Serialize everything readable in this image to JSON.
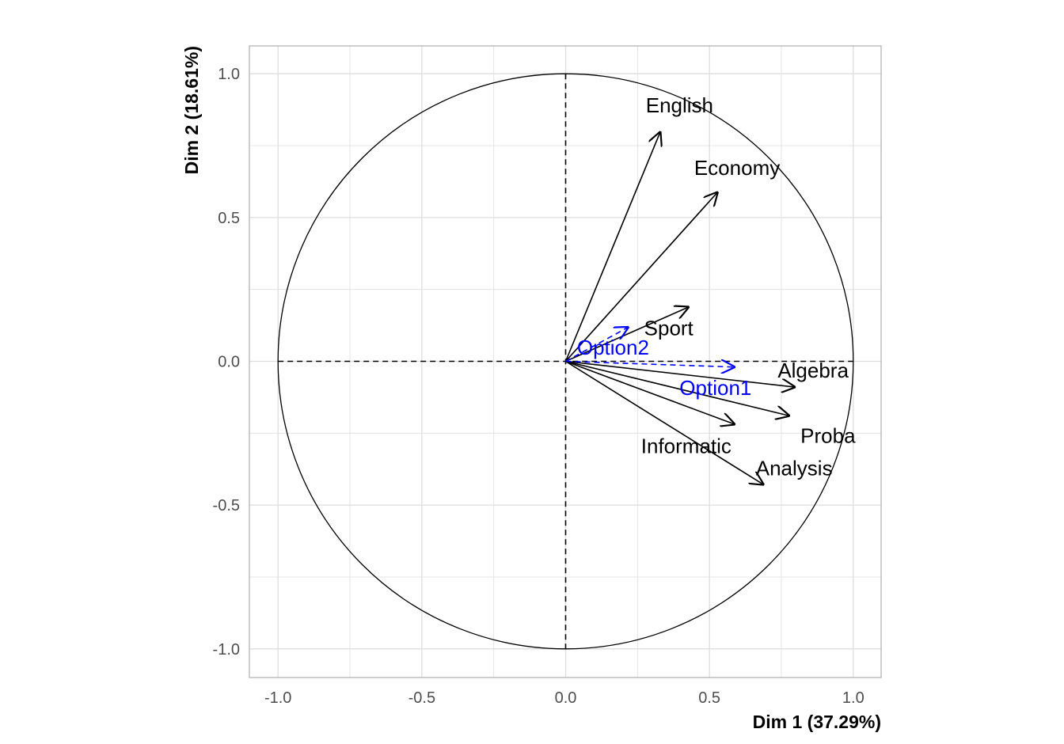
{
  "chart_data": {
    "type": "scatter",
    "subtype": "pca-correlation-circle",
    "xlabel": "Dim 1 (37.29%)",
    "ylabel": "Dim 2 (18.61%)",
    "xlim": [
      -1.1,
      1.1
    ],
    "ylim": [
      -1.1,
      1.1
    ],
    "x_ticks": [
      -1.0,
      -0.5,
      0.0,
      0.5,
      1.0
    ],
    "x_tick_labels": [
      "-1.0",
      "-0.5",
      "0.0",
      "0.5",
      "1.0"
    ],
    "y_ticks": [
      -1.0,
      -0.5,
      0.0,
      0.5,
      1.0
    ],
    "y_tick_labels": [
      "-1.0",
      "-0.5",
      "0.0",
      "0.5",
      "1.0"
    ],
    "grid": true,
    "unit_circle": true,
    "colors": {
      "active": "#000000",
      "supplementary": "#0000ff",
      "grid": "#dedede",
      "panel_border": "#b3b3b3"
    },
    "series": [
      {
        "name": "active",
        "style": "solid",
        "color": "#000000",
        "points": [
          {
            "label": "English",
            "x": 0.33,
            "y": 0.8
          },
          {
            "label": "Economy",
            "x": 0.53,
            "y": 0.59
          },
          {
            "label": "Sport",
            "x": 0.43,
            "y": 0.19
          },
          {
            "label": "Algebra",
            "x": 0.8,
            "y": -0.09
          },
          {
            "label": "Proba",
            "x": 0.78,
            "y": -0.19
          },
          {
            "label": "Informatic",
            "x": 0.59,
            "y": -0.22
          },
          {
            "label": "Analysis",
            "x": 0.69,
            "y": -0.43
          }
        ]
      },
      {
        "name": "supplementary",
        "style": "dashed",
        "color": "#0000ff",
        "points": [
          {
            "label": "Option1",
            "x": 0.59,
            "y": -0.02
          },
          {
            "label": "Option2",
            "x": 0.22,
            "y": 0.12
          }
        ]
      }
    ]
  }
}
